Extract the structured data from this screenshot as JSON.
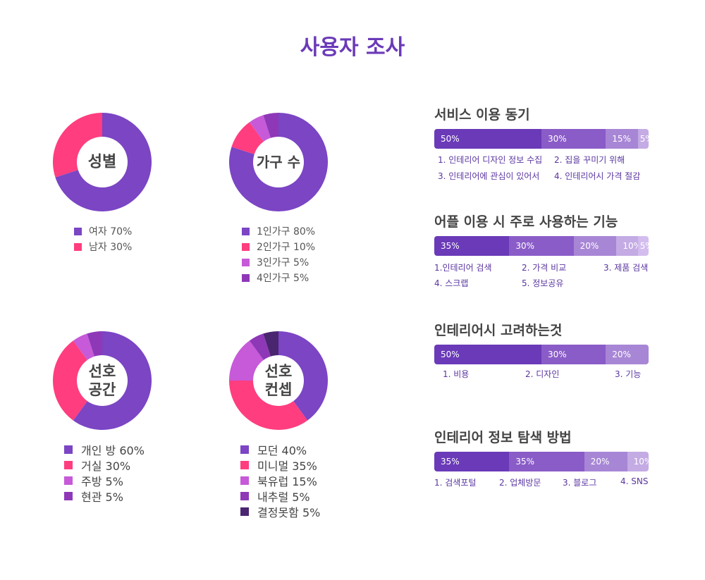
{
  "title": "사용자 조사",
  "colors": {
    "title": "#6a3ab8",
    "donut_main": "#7b45c4",
    "donut_pink": "#ff3d7f",
    "donut_light": "#c65ad8",
    "donut_dark": "#8e38b8",
    "donut_darkest": "#4a2570",
    "bar_1": "#6a3ab8",
    "bar_2": "#8a5cc8",
    "bar_3": "#a886d6",
    "bar_4": "#c4abe4",
    "option_text": "#5a35a0"
  },
  "chart_data": [
    {
      "type": "pie",
      "center_label": [
        "성별"
      ],
      "slices": [
        {
          "label": "여자 70%",
          "value": 70,
          "color": "#7b45c4"
        },
        {
          "label": "남자 30%",
          "value": 30,
          "color": "#ff3d7f"
        }
      ]
    },
    {
      "type": "pie",
      "center_label": [
        "가구 수"
      ],
      "slices": [
        {
          "label": "1인가구 80%",
          "value": 80,
          "color": "#7b45c4"
        },
        {
          "label": "2인가구 10%",
          "value": 10,
          "color": "#ff3d7f"
        },
        {
          "label": "3인가구 5%",
          "value": 5,
          "color": "#c65ad8"
        },
        {
          "label": "4인가구 5%",
          "value": 5,
          "color": "#8e38b8"
        }
      ]
    },
    {
      "type": "pie",
      "center_label": [
        "선호",
        "공간"
      ],
      "slices": [
        {
          "label": "개인 방 60%",
          "value": 60,
          "color": "#7b45c4"
        },
        {
          "label": "거실 30%",
          "value": 30,
          "color": "#ff3d7f"
        },
        {
          "label": "주방 5%",
          "value": 5,
          "color": "#c65ad8"
        },
        {
          "label": "현관 5%",
          "value": 5,
          "color": "#8e38b8"
        }
      ]
    },
    {
      "type": "pie",
      "center_label": [
        "선호",
        "컨셉"
      ],
      "slices": [
        {
          "label": "모던 40%",
          "value": 40,
          "color": "#7b45c4"
        },
        {
          "label": "미니멀 35%",
          "value": 35,
          "color": "#ff3d7f"
        },
        {
          "label": "북유럽 15%",
          "value": 15,
          "color": "#c65ad8"
        },
        {
          "label": "내추럴 5%",
          "value": 5,
          "color": "#8e38b8"
        },
        {
          "label": "결정못함 5%",
          "value": 5,
          "color": "#4a2570"
        }
      ]
    },
    {
      "type": "bar",
      "title": "서비스 이용 동기",
      "segments": [
        {
          "label": "50%",
          "value": 50
        },
        {
          "label": "30%",
          "value": 30
        },
        {
          "label": "15%",
          "value": 15
        },
        {
          "label": "5%",
          "value": 5
        }
      ],
      "options": [
        "1. 인테리어 디자인 정보 수집",
        "2. 집을 꾸미기 위해",
        "3. 인테리어에 관심이 있어서",
        "4. 인테리어시 가격 절감"
      ]
    },
    {
      "type": "bar",
      "title": "어플 이용 시 주로 사용하는 기능",
      "segments": [
        {
          "label": "35%",
          "value": 35
        },
        {
          "label": "30%",
          "value": 30
        },
        {
          "label": "20%",
          "value": 20
        },
        {
          "label": "10%",
          "value": 10
        },
        {
          "label": "5%",
          "value": 5
        }
      ],
      "options": [
        "1.인테리어 검색",
        "2. 가격 비교",
        "3. 제품 검색",
        "4. 스크랩",
        "5. 정보공유"
      ]
    },
    {
      "type": "bar",
      "title": "인테리어시 고려하는것",
      "segments": [
        {
          "label": "50%",
          "value": 50
        },
        {
          "label": "30%",
          "value": 30
        },
        {
          "label": "20%",
          "value": 20
        }
      ],
      "options": [
        "1. 비용",
        "2. 디자인",
        "3. 기능"
      ]
    },
    {
      "type": "bar",
      "title": "인테리어 정보 탐색 방법",
      "segments": [
        {
          "label": "35%",
          "value": 35
        },
        {
          "label": "35%",
          "value": 35
        },
        {
          "label": "20%",
          "value": 20
        },
        {
          "label": "10%",
          "value": 10
        }
      ],
      "options": [
        "1. 검색포털",
        "2. 업체방문",
        "3. 블로그",
        "4. SNS"
      ]
    }
  ]
}
